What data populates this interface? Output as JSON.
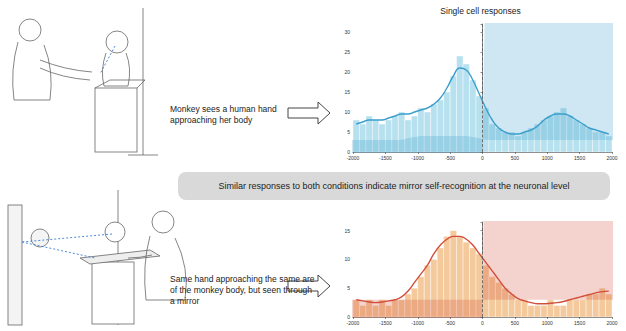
{
  "header": {
    "title": "Single cell responses"
  },
  "conditions": [
    {
      "text": "Monkey sees a human hand approaching her body"
    },
    {
      "text": "Same hand approaching the same are of the monkey body, but seen through a mirror"
    }
  ],
  "conclusion": "Similar responses to both conditions indicate mirror self-recognition at the neuronal level",
  "chart_data": [
    {
      "type": "histogram",
      "bins": [
        -2000,
        -1900,
        -1800,
        -1700,
        -1600,
        -1500,
        -1400,
        -1300,
        -1200,
        -1100,
        -1000,
        -900,
        -800,
        -700,
        -600,
        -500,
        -400,
        -300,
        -200,
        -100,
        0,
        100,
        200,
        300,
        400,
        500,
        600,
        700,
        800,
        900,
        1000,
        1100,
        1200,
        1300,
        1400,
        1500,
        1600,
        1700,
        1800,
        1900,
        2000
      ],
      "counts": [
        8,
        7,
        9,
        8,
        7,
        8,
        9,
        10,
        8,
        9,
        11,
        10,
        12,
        13,
        15,
        19,
        24,
        22,
        18,
        14,
        11,
        7,
        6,
        5,
        5,
        4,
        5,
        6,
        7,
        8,
        9,
        10,
        11,
        9,
        8,
        7,
        6,
        5,
        5,
        4
      ],
      "color": "#aadcec",
      "line": {
        "values": [
          7,
          7.5,
          8,
          8,
          8,
          8.5,
          9,
          9.5,
          9.5,
          10,
          10.5,
          11,
          12,
          13.5,
          16,
          19,
          21,
          20.5,
          18,
          14.5,
          11,
          8,
          6,
          5,
          4.5,
          4.5,
          5,
          5.5,
          6.5,
          8,
          9,
          9.5,
          9.5,
          9,
          8,
          7,
          6,
          5.5,
          5,
          4.5
        ],
        "error": [
          1.5,
          1.5,
          1.5,
          1.5,
          1.5,
          1.5,
          1.5,
          1.5,
          1.5,
          1.5,
          1.5,
          1.5,
          1.5,
          1.5,
          1.8,
          2,
          2,
          2,
          2,
          1.8,
          1.5,
          1.5,
          1.5,
          1.5,
          1.5,
          1.5,
          1.5,
          1.5,
          1.5,
          1.5,
          1.5,
          1.5,
          1.5,
          1.5,
          1.5,
          1.5,
          1.5,
          1.5,
          1.5,
          1.5
        ],
        "color": "#3a9fcc"
      },
      "xlim": [
        -2000,
        2000
      ],
      "xticks": [
        -2000,
        -1500,
        -1000,
        -500,
        0,
        500,
        1000,
        1500,
        2000
      ],
      "ylim": [
        0,
        32
      ],
      "yticks": [
        0,
        5,
        10,
        15,
        20,
        25,
        30
      ],
      "event_x": 0,
      "grid": false
    },
    {
      "type": "histogram",
      "bins": [
        -2000,
        -1900,
        -1800,
        -1700,
        -1600,
        -1500,
        -1400,
        -1300,
        -1200,
        -1100,
        -1000,
        -900,
        -800,
        -700,
        -600,
        -500,
        -400,
        -300,
        -200,
        -100,
        0,
        100,
        200,
        300,
        400,
        500,
        600,
        700,
        800,
        900,
        1000,
        1100,
        1200,
        1300,
        1400,
        1500,
        1600,
        1700,
        1800,
        1900,
        2000
      ],
      "counts": [
        3,
        2,
        3,
        2,
        3,
        2,
        3,
        3,
        4,
        5,
        7,
        9,
        10,
        12,
        14,
        15,
        14,
        13,
        12,
        11,
        9,
        7,
        6,
        5,
        4,
        3,
        3,
        2,
        2,
        2,
        3,
        2,
        2,
        3,
        3,
        3,
        4,
        4,
        5,
        4
      ],
      "color": "#f2c08a",
      "line": {
        "values": [
          3,
          2.8,
          2.6,
          2.5,
          2.6,
          2.8,
          3,
          3.5,
          4.5,
          6,
          7.5,
          9,
          11,
          12.5,
          13.5,
          14,
          14,
          13.5,
          12.5,
          11,
          9.5,
          8,
          6.5,
          5,
          4,
          3.2,
          2.8,
          2.5,
          2.3,
          2.3,
          2.4,
          2.5,
          2.7,
          3,
          3.3,
          3.6,
          3.9,
          4.2,
          4.4,
          4.5
        ],
        "error": [
          1.5,
          1.5,
          1.5,
          1.5,
          1.5,
          1.5,
          1.5,
          1.5,
          1.5,
          1.5,
          1.5,
          1.5,
          1.5,
          1.5,
          1.5,
          1.5,
          1.5,
          1.5,
          1.5,
          1.5,
          1.5,
          1.5,
          1.5,
          1.5,
          1.5,
          1.5,
          1.5,
          1.5,
          1.5,
          1.5,
          1.5,
          1.5,
          1.5,
          1.5,
          1.5,
          1.5,
          1.5,
          1.5,
          1.5,
          1.5
        ],
        "color": "#d24e3a"
      },
      "xlim": [
        -2000,
        2000
      ],
      "xticks": [
        -2000,
        -1500,
        -1000,
        -500,
        0,
        500,
        1000,
        1500,
        2000
      ],
      "ylim": [
        0,
        16.5
      ],
      "yticks": [
        0,
        5,
        10,
        15
      ],
      "event_x": 0,
      "grid": false
    }
  ]
}
